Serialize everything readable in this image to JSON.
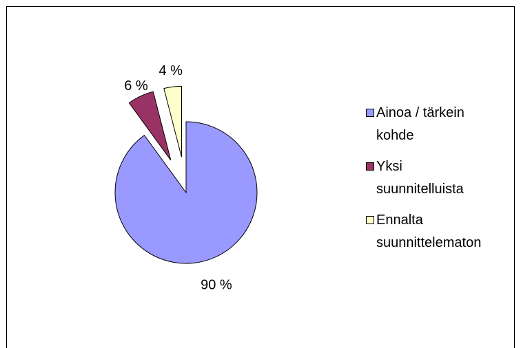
{
  "chart_data": {
    "type": "pie",
    "categories": [
      "Ainoa / tärkein kohde",
      "Yksi suunnitelluista",
      "Ennalta suunnittelematon"
    ],
    "values": [
      90,
      6,
      4
    ],
    "value_labels": [
      "90 %",
      "6 %",
      "4 %"
    ],
    "colors": [
      "#9999ff",
      "#993366",
      "#ffffcc"
    ],
    "legend": "right"
  }
}
